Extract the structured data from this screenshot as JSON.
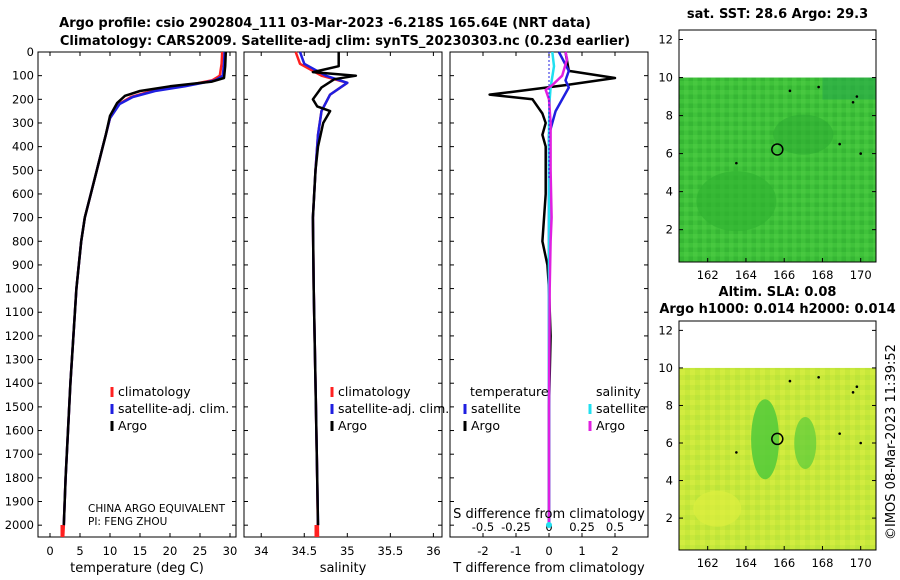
{
  "title_line1": "Argo profile: csio 2902804_111 03-Mar-2023 -6.218S 165.64E (NRT data)",
  "title_line2": "Climatology: CARS2009. Satellite-adj clim: synTS_20230303.nc (0.23d earlier)",
  "stamp": "©IMOS 08-Mar-2023 11:39:52",
  "institution_line1": "CHINA ARGO EQUIVALENT",
  "institution_line2": "PI: FENG ZHOU",
  "legend": {
    "climatology": "climatology",
    "satellite_adj": "satellite-adj. clim.",
    "argo": "Argo",
    "temperature": "temperature",
    "salinity": "salinity",
    "satellite": "satellite"
  },
  "colors": {
    "climatology": "#ff2020",
    "satellite_adj": "#1f1fe0",
    "argo": "#000000",
    "diff_t_sat": "#1f1fe0",
    "diff_s_sat": "#20e0f0",
    "diff_s_argo": "#e020e0"
  },
  "map_top_title": "sat. SST: 28.6 Argo: 29.3",
  "map_bottom_title1": "Altim. SLA: 0.08",
  "map_bottom_title2": "Argo h1000: 0.014 h2000: 0.014",
  "chart_data": [
    {
      "type": "line",
      "name": "temperature-profile",
      "xlabel": "temperature (deg C)",
      "ylabel": "depth",
      "xlim": [
        -2,
        31
      ],
      "ylim": [
        2050,
        0
      ],
      "xticks": [
        0,
        5,
        10,
        15,
        20,
        25,
        30
      ],
      "yticks": [
        0,
        100,
        200,
        300,
        400,
        500,
        600,
        700,
        800,
        900,
        1000,
        1100,
        1200,
        1300,
        1400,
        1500,
        1600,
        1700,
        1800,
        1900,
        2000
      ],
      "series": [
        {
          "name": "climatology",
          "points": [
            [
              28.7,
              0
            ],
            [
              28.6,
              50
            ],
            [
              28.3,
              100
            ],
            [
              27,
              120
            ],
            [
              22,
              145
            ],
            [
              17,
              165
            ],
            [
              13.5,
              190
            ],
            [
              11.5,
              220
            ],
            [
              10,
              280
            ],
            [
              9.3,
              350
            ],
            [
              8.8,
              400
            ],
            [
              7.8,
              500
            ],
            [
              6.8,
              600
            ],
            [
              5.8,
              700
            ],
            [
              5.2,
              800
            ],
            [
              4.8,
              900
            ],
            [
              4.4,
              1000
            ],
            [
              3.9,
              1200
            ],
            [
              3.4,
              1400
            ],
            [
              3.0,
              1600
            ],
            [
              2.6,
              1800
            ],
            [
              2.3,
              2000
            ],
            [
              2.2,
              2050
            ]
          ]
        },
        {
          "name": "satellite-adj. clim.",
          "points": [
            [
              29.1,
              0
            ],
            [
              29.0,
              50
            ],
            [
              28.8,
              100
            ],
            [
              27.5,
              120
            ],
            [
              22.5,
              145
            ],
            [
              17.5,
              165
            ],
            [
              13.8,
              190
            ],
            [
              11.6,
              220
            ],
            [
              10,
              280
            ],
            [
              9.3,
              350
            ],
            [
              8.8,
              400
            ],
            [
              7.8,
              500
            ],
            [
              6.8,
              600
            ],
            [
              5.8,
              700
            ],
            [
              5.2,
              800
            ],
            [
              4.8,
              900
            ],
            [
              4.4,
              1000
            ],
            [
              3.9,
              1200
            ],
            [
              3.4,
              1400
            ],
            [
              3.0,
              1600
            ],
            [
              2.6,
              1800
            ],
            [
              2.3,
              2000
            ]
          ]
        },
        {
          "name": "Argo",
          "points": [
            [
              29.3,
              0
            ],
            [
              29.2,
              60
            ],
            [
              29.0,
              110
            ],
            [
              27,
              125
            ],
            [
              20,
              145
            ],
            [
              15,
              165
            ],
            [
              12.5,
              185
            ],
            [
              11.2,
              215
            ],
            [
              10,
              270
            ],
            [
              9.3,
              350
            ],
            [
              8.8,
              400
            ],
            [
              7.8,
              500
            ],
            [
              6.8,
              600
            ],
            [
              5.8,
              700
            ],
            [
              5.2,
              800
            ],
            [
              4.8,
              900
            ],
            [
              4.4,
              1000
            ],
            [
              3.9,
              1200
            ],
            [
              3.4,
              1400
            ],
            [
              3.0,
              1600
            ],
            [
              2.6,
              1800
            ],
            [
              2.3,
              2000
            ]
          ]
        }
      ]
    },
    {
      "type": "line",
      "name": "salinity-profile",
      "xlabel": "salinity",
      "xlim": [
        33.8,
        36.1
      ],
      "ylim": [
        2050,
        0
      ],
      "xticks": [
        34,
        34.5,
        35,
        35.5,
        36
      ],
      "series": [
        {
          "name": "climatology",
          "points": [
            [
              34.4,
              0
            ],
            [
              34.45,
              50
            ],
            [
              34.7,
              100
            ],
            [
              35.0,
              130
            ],
            [
              34.8,
              180
            ],
            [
              34.7,
              250
            ],
            [
              34.66,
              350
            ],
            [
              34.63,
              500
            ],
            [
              34.6,
              700
            ],
            [
              34.61,
              1000
            ],
            [
              34.63,
              1400
            ],
            [
              34.65,
              1800
            ],
            [
              34.66,
              2050
            ]
          ]
        },
        {
          "name": "satellite-adj. clim.",
          "points": [
            [
              34.45,
              0
            ],
            [
              34.5,
              50
            ],
            [
              34.75,
              100
            ],
            [
              35.0,
              130
            ],
            [
              34.8,
              180
            ],
            [
              34.7,
              250
            ],
            [
              34.66,
              350
            ],
            [
              34.63,
              500
            ],
            [
              34.6,
              700
            ],
            [
              34.61,
              1000
            ],
            [
              34.63,
              1400
            ],
            [
              34.65,
              1800
            ],
            [
              34.66,
              2000
            ]
          ]
        },
        {
          "name": "Argo",
          "points": [
            [
              34.9,
              0
            ],
            [
              34.9,
              60
            ],
            [
              34.6,
              85
            ],
            [
              35.1,
              100
            ],
            [
              34.85,
              115
            ],
            [
              34.7,
              150
            ],
            [
              34.6,
              200
            ],
            [
              34.65,
              230
            ],
            [
              34.8,
              250
            ],
            [
              34.72,
              300
            ],
            [
              34.66,
              400
            ],
            [
              34.63,
              500
            ],
            [
              34.6,
              700
            ],
            [
              34.61,
              1000
            ],
            [
              34.63,
              1400
            ],
            [
              34.65,
              1800
            ],
            [
              34.66,
              2000
            ]
          ]
        }
      ]
    },
    {
      "type": "line",
      "name": "difference-from-climatology",
      "xlabel": "T difference from climatology",
      "xlabel_top": "S difference from climatology",
      "xlim": [
        -3,
        3
      ],
      "ylim": [
        2050,
        0
      ],
      "xticks": [
        -2,
        -1,
        0,
        1,
        2
      ],
      "sticks": [
        -0.5,
        -0.25,
        0,
        0.25,
        0.5
      ],
      "stick_labels": [
        "-0.5",
        "-0.25",
        "0",
        "0.25",
        "0.5"
      ],
      "series": [
        {
          "name": "temperature Argo",
          "points": [
            [
              0.5,
              0
            ],
            [
              0.6,
              80
            ],
            [
              2.0,
              110
            ],
            [
              0.5,
              140
            ],
            [
              -1.2,
              170
            ],
            [
              -1.8,
              180
            ],
            [
              -0.5,
              200
            ],
            [
              -0.2,
              260
            ],
            [
              -0.1,
              300
            ],
            [
              -0.2,
              350
            ],
            [
              -0.1,
              400
            ],
            [
              -0.1,
              600
            ],
            [
              -0.2,
              800
            ],
            [
              -0.05,
              900
            ],
            [
              0,
              1000
            ],
            [
              0.05,
              1200
            ],
            [
              0,
              1500
            ],
            [
              0,
              2000
            ]
          ]
        },
        {
          "name": "temperature satellite",
          "points": [
            [
              0.3,
              0
            ],
            [
              0.6,
              80
            ],
            [
              0.5,
              120
            ],
            [
              0.6,
              150
            ],
            [
              0.2,
              250
            ],
            [
              0,
              350
            ],
            [
              0,
              500
            ],
            [
              0,
              2000
            ]
          ]
        },
        {
          "name": "salinity satellite",
          "points": [
            [
              0.1,
              0
            ],
            [
              0.15,
              60
            ],
            [
              0.05,
              150
            ],
            [
              0.02,
              200
            ],
            [
              0,
              300
            ],
            [
              0,
              2000
            ]
          ]
        },
        {
          "name": "salinity Argo",
          "points": [
            [
              0.5,
              0
            ],
            [
              0.55,
              30
            ],
            [
              0.4,
              100
            ],
            [
              0.1,
              140
            ],
            [
              -0.1,
              160
            ],
            [
              0,
              200
            ],
            [
              0.05,
              300
            ],
            [
              0.05,
              500
            ],
            [
              0.08,
              700
            ],
            [
              0.05,
              800
            ],
            [
              0.02,
              1000
            ],
            [
              0,
              1500
            ],
            [
              0,
              2000
            ]
          ]
        }
      ]
    },
    {
      "type": "heatmap",
      "name": "sst-map",
      "title": "sat. SST: 28.6 Argo: 29.3",
      "xlim": [
        160.5,
        170.8
      ],
      "ylim": [
        0.3,
        12.5
      ],
      "xticks": [
        162,
        164,
        166,
        168,
        170
      ],
      "yticks": [
        2,
        4,
        6,
        8,
        10,
        12
      ],
      "data_top": 10,
      "argo_location": [
        165.64,
        6.218
      ]
    },
    {
      "type": "heatmap",
      "name": "sla-map",
      "title": "Altim. SLA: 0.08",
      "xlim": [
        160.5,
        170.8
      ],
      "ylim": [
        0.3,
        12.5
      ],
      "xticks": [
        162,
        164,
        166,
        168,
        170
      ],
      "yticks": [
        2,
        4,
        6,
        8,
        10,
        12
      ],
      "data_top": 10,
      "argo_location": [
        165.64,
        6.218
      ]
    }
  ]
}
